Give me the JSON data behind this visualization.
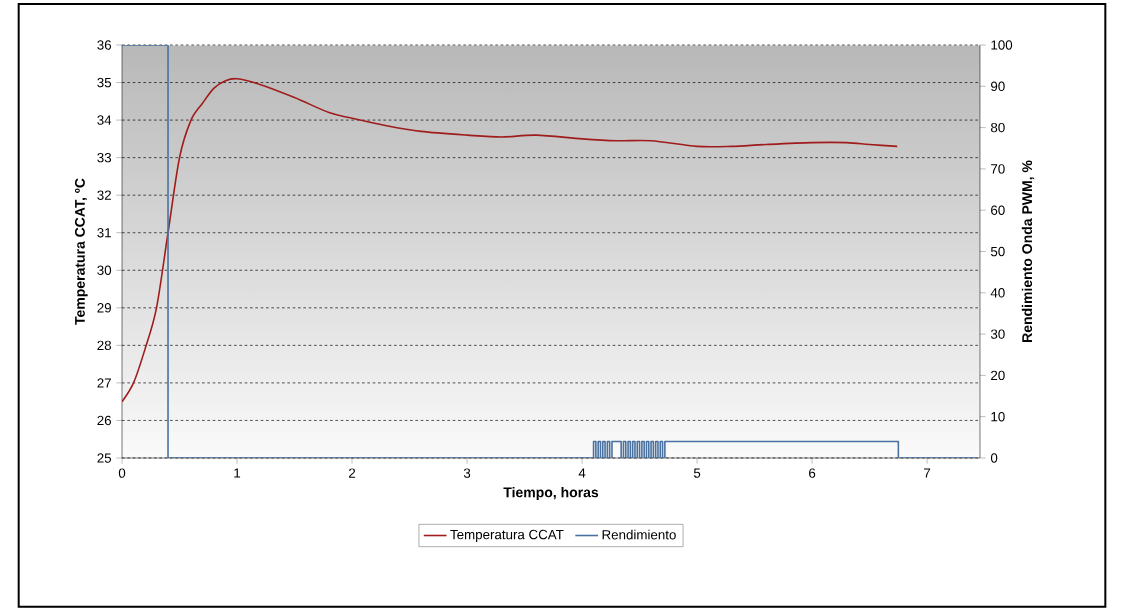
{
  "chart_data": {
    "type": "line",
    "xlabel": "Tiempo, horas",
    "ylabel": "Temperatura CCAT, ºC",
    "y2label": "Rendimiento Onda PWM, %",
    "xlim": [
      0,
      7.46
    ],
    "xticks": [
      0,
      1,
      2,
      3,
      4,
      5,
      6,
      7
    ],
    "ylim": [
      25,
      36
    ],
    "yticks": [
      25,
      26,
      27,
      28,
      29,
      30,
      31,
      32,
      33,
      34,
      35,
      36
    ],
    "y2lim": [
      0,
      100
    ],
    "y2ticks": [
      0,
      10,
      20,
      30,
      40,
      50,
      60,
      70,
      80,
      90,
      100
    ],
    "grid": "y",
    "legend": "bottom",
    "series": [
      {
        "name": "Temperatura CCAT",
        "color": "#a01c1c",
        "x": [
          0,
          0.1,
          0.2,
          0.3,
          0.4,
          0.5,
          0.6,
          0.7,
          0.8,
          0.9,
          1.0,
          1.2,
          1.5,
          1.8,
          2.0,
          2.3,
          2.6,
          3.0,
          3.3,
          3.6,
          4.0,
          4.3,
          4.6,
          5.0,
          5.3,
          5.6,
          6.0,
          6.3,
          6.5,
          6.74
        ],
        "values": [
          26.5,
          27.0,
          27.9,
          29.0,
          31.0,
          33.0,
          34.0,
          34.45,
          34.85,
          35.05,
          35.1,
          34.95,
          34.6,
          34.2,
          34.05,
          33.85,
          33.7,
          33.6,
          33.55,
          33.6,
          33.5,
          33.45,
          33.45,
          33.3,
          33.3,
          33.35,
          33.4,
          33.4,
          33.35,
          33.3
        ]
      },
      {
        "name": "Rendimiento",
        "color": "#4a72a0",
        "type": "step",
        "axis": "y2",
        "x": [
          0,
          0.4,
          4.1,
          4.12,
          4.14,
          4.16,
          4.18,
          4.2,
          4.22,
          4.24,
          4.26,
          4.34,
          4.36,
          4.38,
          4.4,
          4.42,
          4.44,
          4.46,
          4.48,
          4.5,
          4.52,
          4.54,
          4.56,
          4.58,
          4.6,
          4.62,
          4.64,
          4.66,
          4.68,
          4.7,
          4.72,
          6.75,
          7.44
        ],
        "values": [
          100,
          0,
          4,
          0,
          4,
          0,
          4,
          0,
          4,
          0,
          4,
          0,
          4,
          0,
          4,
          0,
          4,
          0,
          4,
          0,
          4,
          0,
          4,
          0,
          4,
          0,
          4,
          0,
          4,
          0,
          4,
          0,
          0
        ]
      }
    ]
  }
}
